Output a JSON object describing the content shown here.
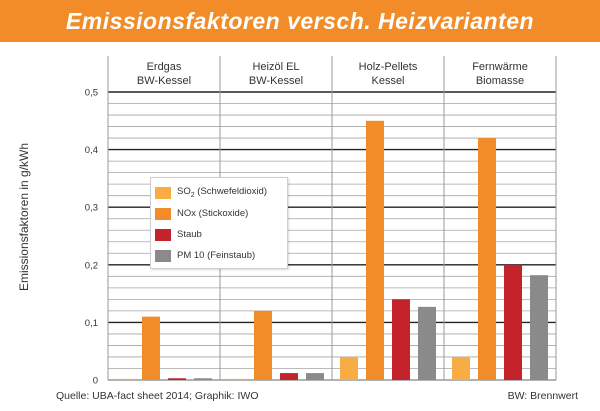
{
  "header": {
    "title": "Emissionsfaktoren versch. Heizvarianten"
  },
  "footer": {
    "source": "Quelle: UBA-fact sheet 2014; Graphik: IWO",
    "note": "BW: Brennwert"
  },
  "colors": {
    "header_bg": "#f28c28",
    "so2": "#f7ad43",
    "nox": "#f28c28",
    "staub": "#c4232c",
    "pm10": "#8a8a8a",
    "grid": "#222222",
    "minor_grid": "#a5a5a5"
  },
  "chart_data": {
    "type": "bar",
    "ylabel": "Emissionsfaktoren in g/kWh",
    "ylim": [
      0,
      0.5
    ],
    "yticks": [
      {
        "value": 0,
        "label": "0"
      },
      {
        "value": 0.1,
        "label": "0,1"
      },
      {
        "value": 0.2,
        "label": "0,2"
      },
      {
        "value": 0.3,
        "label": "0,3"
      },
      {
        "value": 0.4,
        "label": "0,4"
      },
      {
        "value": 0.5,
        "label": "0,5"
      }
    ],
    "grid": true,
    "legend_position": "middle-left",
    "categories": [
      {
        "line1": "Erdgas",
        "line2": "BW-Kessel"
      },
      {
        "line1": "Heizöl EL",
        "line2": "BW-Kessel"
      },
      {
        "line1": "Holz-Pellets",
        "line2": "Kessel"
      },
      {
        "line1": "Fernwärme",
        "line2": "Biomasse"
      }
    ],
    "series": [
      {
        "name": "SO",
        "sub": "2",
        "name_rest": " (Schwefeldioxid)",
        "color_key": "so2",
        "values": [
          0.002,
          0.002,
          0.04,
          0.04
        ]
      },
      {
        "name": "NOx (Stickoxide)",
        "sub": "",
        "name_rest": "",
        "color_key": "nox",
        "values": [
          0.11,
          0.12,
          0.45,
          0.42
        ]
      },
      {
        "name": "Staub",
        "sub": "",
        "name_rest": "",
        "color_key": "staub",
        "values": [
          0.003,
          0.012,
          0.14,
          0.2
        ]
      },
      {
        "name": "PM 10 (Feinstaub)",
        "sub": "",
        "name_rest": "",
        "color_key": "pm10",
        "values": [
          0.003,
          0.012,
          0.127,
          0.182
        ]
      }
    ]
  }
}
